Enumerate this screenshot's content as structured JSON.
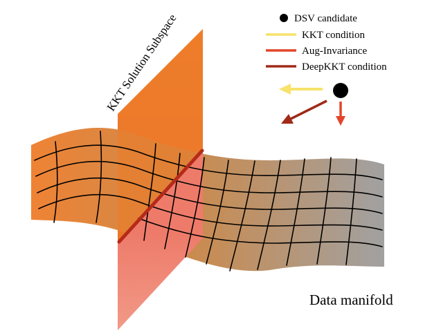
{
  "diagram": {
    "plane_label": "KKT Solution Subspace",
    "manifold_label": "Data manifold",
    "legend": [
      {
        "label": "DSV candidate",
        "marker": "dot",
        "color": "#000000"
      },
      {
        "label": "KKT condition",
        "marker": "line",
        "color": "#F7E26B"
      },
      {
        "label": "Aug-Invariance",
        "marker": "line",
        "color": "#E2452C"
      },
      {
        "label": "DeepKKT condition",
        "marker": "line",
        "color": "#A02A18"
      }
    ],
    "colors": {
      "plane_top": "#EE7F2E",
      "plane_bottom": "#F08C7C",
      "manifold_left": "#EE7F2E",
      "manifold_right": "#9E9E9E",
      "intersection_line": "#B52A1A",
      "grid": "#000000",
      "arrow_kkt": "#F7E26B",
      "arrow_aug": "#E2452C",
      "arrow_deepkkt": "#A02A18"
    }
  }
}
